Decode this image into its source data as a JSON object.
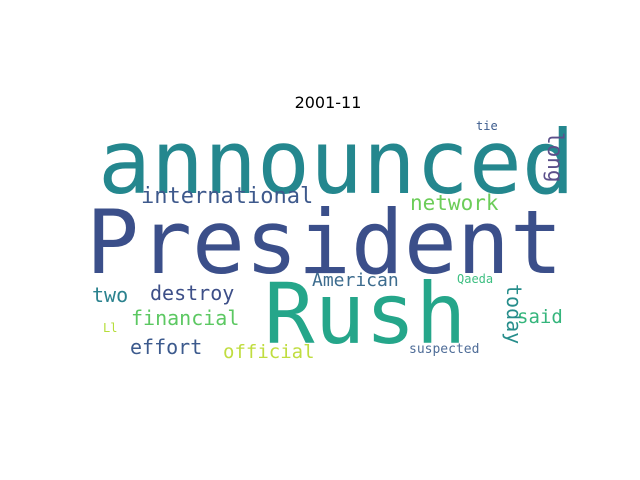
{
  "title": "2001-11",
  "words": [
    {
      "text": "announced",
      "color": "#24878e"
    },
    {
      "text": "President",
      "color": "#3b4f8a"
    },
    {
      "text": "Rush",
      "color": "#25a68a"
    },
    {
      "text": "international",
      "color": "#3e598c"
    },
    {
      "text": "network",
      "color": "#6ccd59"
    },
    {
      "text": "long",
      "color": "#5b4f8a"
    },
    {
      "text": "tie",
      "color": "#3b5b8c"
    },
    {
      "text": "American",
      "color": "#3d6c8e"
    },
    {
      "text": "Qaeda",
      "color": "#3ebf82"
    },
    {
      "text": "two",
      "color": "#2b828e"
    },
    {
      "text": "destroy",
      "color": "#3d4f88"
    },
    {
      "text": "financial",
      "color": "#5cc862"
    },
    {
      "text": "today",
      "color": "#268d8b"
    },
    {
      "text": "said",
      "color": "#35b57c"
    },
    {
      "text": "effort",
      "color": "#3c5a8d"
    },
    {
      "text": "official",
      "color": "#c0dd40"
    },
    {
      "text": "Ll",
      "color": "#b6de3a"
    },
    {
      "text": "suspected",
      "color": "#4f6d98"
    }
  ]
}
